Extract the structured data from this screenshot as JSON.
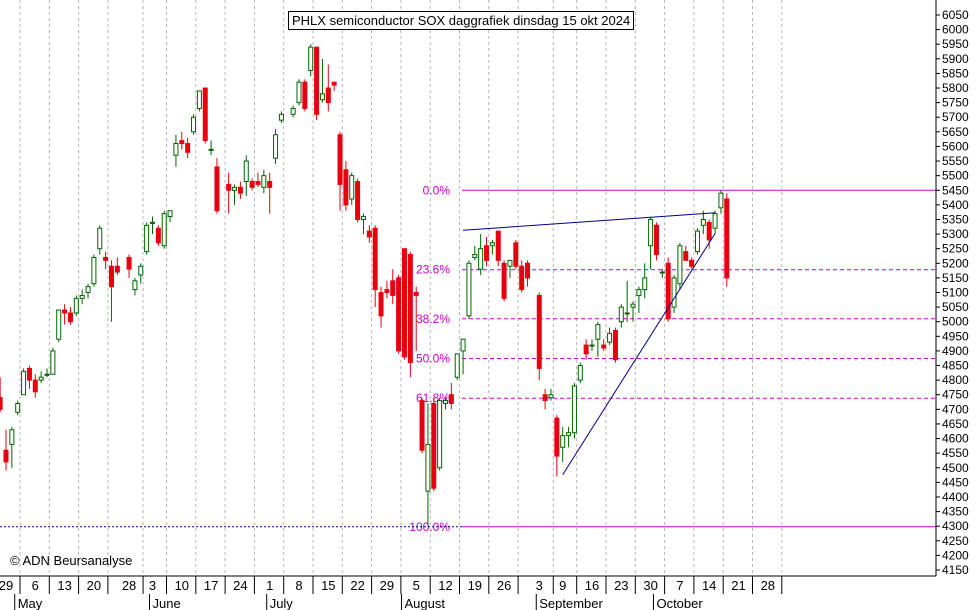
{
  "chart_data": {
    "type": "candlestick",
    "title": "PHLX semiconductor SOX daggrafiek dinsdag 15 okt 2024",
    "watermark": "© ADN Beursanalyse",
    "ylim": [
      4150,
      6090
    ],
    "y_ticks": [
      4150,
      4200,
      4250,
      4300,
      4350,
      4400,
      4450,
      4500,
      4550,
      4600,
      4650,
      4700,
      4750,
      4800,
      4850,
      4900,
      4950,
      5000,
      5050,
      5100,
      5150,
      5200,
      5250,
      5300,
      5350,
      5400,
      5450,
      5500,
      5550,
      5600,
      5650,
      5700,
      5750,
      5800,
      5850,
      5900,
      5950,
      6000,
      6050
    ],
    "x_ticks": [
      {
        "label": "29",
        "date": "2024-04-29"
      },
      {
        "label": "6",
        "date": "2024-05-06"
      },
      {
        "label": "13",
        "date": "2024-05-13"
      },
      {
        "label": "20",
        "date": "2024-05-20"
      },
      {
        "label": "28",
        "date": "2024-05-28"
      },
      {
        "label": "3",
        "date": "2024-06-03"
      },
      {
        "label": "10",
        "date": "2024-06-10"
      },
      {
        "label": "17",
        "date": "2024-06-17"
      },
      {
        "label": "24",
        "date": "2024-06-24"
      },
      {
        "label": "1",
        "date": "2024-07-01"
      },
      {
        "label": "8",
        "date": "2024-07-08"
      },
      {
        "label": "15",
        "date": "2024-07-15"
      },
      {
        "label": "22",
        "date": "2024-07-22"
      },
      {
        "label": "29",
        "date": "2024-07-29"
      },
      {
        "label": "5",
        "date": "2024-08-05"
      },
      {
        "label": "12",
        "date": "2024-08-12"
      },
      {
        "label": "19",
        "date": "2024-08-19"
      },
      {
        "label": "26",
        "date": "2024-08-26"
      },
      {
        "label": "3",
        "date": "2024-09-03"
      },
      {
        "label": "9",
        "date": "2024-09-09"
      },
      {
        "label": "16",
        "date": "2024-09-16"
      },
      {
        "label": "23",
        "date": "2024-09-23"
      },
      {
        "label": "30",
        "date": "2024-09-30"
      },
      {
        "label": "7",
        "date": "2024-10-07"
      },
      {
        "label": "14",
        "date": "2024-10-14"
      },
      {
        "label": "21",
        "date": "2024-10-21"
      },
      {
        "label": "28",
        "date": "2024-10-28"
      }
    ],
    "months": [
      {
        "label": "May",
        "date": "2024-05-01"
      },
      {
        "label": "June",
        "date": "2024-06-03"
      },
      {
        "label": "July",
        "date": "2024-07-01"
      },
      {
        "label": "August",
        "date": "2024-08-01"
      },
      {
        "label": "September",
        "date": "2024-09-03"
      },
      {
        "label": "October",
        "date": "2024-10-01"
      }
    ],
    "fib_levels": [
      {
        "label": "0.0%",
        "value": 5450
      },
      {
        "label": "23.6%",
        "value": 5178
      },
      {
        "label": "38.2%",
        "value": 5010
      },
      {
        "label": "50.0%",
        "value": 4874
      },
      {
        "label": "61.8%",
        "value": 4738
      },
      {
        "label": "100.0%",
        "value": 4298
      }
    ],
    "hlines": [
      {
        "value": 4298,
        "style": "dotted",
        "color": "#00008b"
      }
    ],
    "trendlines": [
      {
        "from": {
          "date": "2024-08-15",
          "value": 5313
        },
        "to": {
          "date": "2024-10-15",
          "value": 5373
        }
      },
      {
        "from": {
          "date": "2024-09-09",
          "value": 4476
        },
        "to": {
          "date": "2024-10-15",
          "value": 5302
        }
      }
    ],
    "candles": [
      {
        "date": "2024-04-26",
        "o": 4740,
        "h": 4810,
        "l": 4690,
        "c": 4700
      },
      {
        "date": "2024-04-29",
        "o": 4560,
        "h": 4630,
        "l": 4490,
        "c": 4520
      },
      {
        "date": "2024-04-30",
        "o": 4580,
        "h": 4640,
        "l": 4500,
        "c": 4630
      },
      {
        "date": "2024-05-01",
        "o": 4690,
        "h": 4730,
        "l": 4680,
        "c": 4720
      },
      {
        "date": "2024-05-02",
        "o": 4750,
        "h": 4840,
        "l": 4750,
        "c": 4830
      },
      {
        "date": "2024-05-03",
        "o": 4840,
        "h": 4850,
        "l": 4770,
        "c": 4800
      },
      {
        "date": "2024-05-06",
        "o": 4800,
        "h": 4820,
        "l": 4740,
        "c": 4760
      },
      {
        "date": "2024-05-07",
        "o": 4800,
        "h": 4830,
        "l": 4790,
        "c": 4810
      },
      {
        "date": "2024-05-08",
        "o": 4820,
        "h": 4840,
        "l": 4810,
        "c": 4820
      },
      {
        "date": "2024-05-09",
        "o": 4820,
        "h": 4910,
        "l": 4820,
        "c": 4900
      },
      {
        "date": "2024-05-10",
        "o": 4940,
        "h": 5040,
        "l": 4930,
        "c": 5040
      },
      {
        "date": "2024-05-13",
        "o": 5040,
        "h": 5060,
        "l": 4990,
        "c": 5030
      },
      {
        "date": "2024-05-14",
        "o": 5030,
        "h": 5050,
        "l": 4990,
        "c": 5000
      },
      {
        "date": "2024-05-15",
        "o": 5030,
        "h": 5090,
        "l": 5020,
        "c": 5080
      },
      {
        "date": "2024-05-16",
        "o": 5080,
        "h": 5110,
        "l": 5060,
        "c": 5090
      },
      {
        "date": "2024-05-17",
        "o": 5100,
        "h": 5130,
        "l": 5080,
        "c": 5120
      },
      {
        "date": "2024-05-20",
        "o": 5130,
        "h": 5230,
        "l": 5120,
        "c": 5220
      },
      {
        "date": "2024-05-21",
        "o": 5250,
        "h": 5330,
        "l": 5230,
        "c": 5320
      },
      {
        "date": "2024-05-22",
        "o": 5220,
        "h": 5240,
        "l": 5180,
        "c": 5210
      },
      {
        "date": "2024-05-23",
        "o": 5190,
        "h": 5210,
        "l": 5000,
        "c": 5120
      },
      {
        "date": "2024-05-24",
        "o": 5190,
        "h": 5220,
        "l": 5160,
        "c": 5170
      },
      {
        "date": "2024-05-28",
        "o": 5220,
        "h": 5230,
        "l": 5150,
        "c": 5180
      },
      {
        "date": "2024-05-29",
        "o": 5110,
        "h": 5150,
        "l": 5090,
        "c": 5140
      },
      {
        "date": "2024-05-30",
        "o": 5160,
        "h": 5200,
        "l": 5130,
        "c": 5190
      },
      {
        "date": "2024-05-31",
        "o": 5240,
        "h": 5340,
        "l": 5230,
        "c": 5330
      },
      {
        "date": "2024-06-03",
        "o": 5340,
        "h": 5360,
        "l": 5300,
        "c": 5340
      },
      {
        "date": "2024-06-04",
        "o": 5320,
        "h": 5330,
        "l": 5260,
        "c": 5270
      },
      {
        "date": "2024-06-05",
        "o": 5260,
        "h": 5380,
        "l": 5250,
        "c": 5370
      },
      {
        "date": "2024-06-06",
        "o": 5360,
        "h": 5380,
        "l": 5340,
        "c": 5380
      },
      {
        "date": "2024-06-07",
        "o": 5570,
        "h": 5640,
        "l": 5530,
        "c": 5610
      },
      {
        "date": "2024-06-10",
        "o": 5620,
        "h": 5650,
        "l": 5590,
        "c": 5610
      },
      {
        "date": "2024-06-11",
        "o": 5610,
        "h": 5630,
        "l": 5560,
        "c": 5580
      },
      {
        "date": "2024-06-12",
        "o": 5650,
        "h": 5710,
        "l": 5640,
        "c": 5700
      },
      {
        "date": "2024-06-13",
        "o": 5730,
        "h": 5790,
        "l": 5720,
        "c": 5790
      },
      {
        "date": "2024-06-14",
        "o": 5800,
        "h": 5800,
        "l": 5610,
        "c": 5620
      },
      {
        "date": "2024-06-17",
        "o": 5590,
        "h": 5620,
        "l": 5570,
        "c": 5590
      },
      {
        "date": "2024-06-18",
        "o": 5530,
        "h": 5560,
        "l": 5370,
        "c": 5380
      },
      {
        "date": "2024-06-20",
        "o": 5470,
        "h": 5510,
        "l": 5370,
        "c": 5450
      },
      {
        "date": "2024-06-21",
        "o": 5450,
        "h": 5470,
        "l": 5400,
        "c": 5460
      },
      {
        "date": "2024-06-24",
        "o": 5460,
        "h": 5480,
        "l": 5420,
        "c": 5440
      },
      {
        "date": "2024-06-25",
        "o": 5480,
        "h": 5570,
        "l": 5430,
        "c": 5550
      },
      {
        "date": "2024-06-26",
        "o": 5480,
        "h": 5490,
        "l": 5450,
        "c": 5460
      },
      {
        "date": "2024-06-27",
        "o": 5480,
        "h": 5510,
        "l": 5460,
        "c": 5470
      },
      {
        "date": "2024-06-28",
        "o": 5460,
        "h": 5520,
        "l": 5440,
        "c": 5500
      },
      {
        "date": "2024-07-01",
        "o": 5480,
        "h": 5510,
        "l": 5370,
        "c": 5460
      },
      {
        "date": "2024-07-02",
        "o": 5560,
        "h": 5660,
        "l": 5540,
        "c": 5640
      },
      {
        "date": "2024-07-03",
        "o": 5690,
        "h": 5720,
        "l": 5680,
        "c": 5710
      },
      {
        "date": "2024-07-05",
        "o": 5710,
        "h": 5740,
        "l": 5700,
        "c": 5730
      },
      {
        "date": "2024-07-08",
        "o": 5750,
        "h": 5830,
        "l": 5740,
        "c": 5820
      },
      {
        "date": "2024-07-09",
        "o": 5820,
        "h": 5830,
        "l": 5720,
        "c": 5730
      },
      {
        "date": "2024-07-10",
        "o": 5860,
        "h": 5950,
        "l": 5840,
        "c": 5940
      },
      {
        "date": "2024-07-11",
        "o": 5940,
        "h": 5940,
        "l": 5690,
        "c": 5710
      },
      {
        "date": "2024-07-12",
        "o": 5760,
        "h": 5900,
        "l": 5750,
        "c": 5780
      },
      {
        "date": "2024-07-15",
        "o": 5800,
        "h": 5880,
        "l": 5720,
        "c": 5750
      },
      {
        "date": "2024-07-16",
        "o": 5820,
        "h": 5820,
        "l": 5790,
        "c": 5810
      },
      {
        "date": "2024-07-17",
        "o": 5640,
        "h": 5650,
        "l": 5380,
        "c": 5470
      },
      {
        "date": "2024-07-18",
        "o": 5520,
        "h": 5550,
        "l": 5380,
        "c": 5400
      },
      {
        "date": "2024-07-19",
        "o": 5420,
        "h": 5510,
        "l": 5400,
        "c": 5500
      },
      {
        "date": "2024-07-22",
        "o": 5480,
        "h": 5490,
        "l": 5340,
        "c": 5350
      },
      {
        "date": "2024-07-23",
        "o": 5350,
        "h": 5370,
        "l": 5300,
        "c": 5360
      },
      {
        "date": "2024-07-24",
        "o": 5310,
        "h": 5330,
        "l": 5270,
        "c": 5290
      },
      {
        "date": "2024-07-25",
        "o": 5320,
        "h": 5330,
        "l": 5050,
        "c": 5110
      },
      {
        "date": "2024-07-26",
        "o": 5100,
        "h": 5120,
        "l": 4980,
        "c": 5020
      },
      {
        "date": "2024-07-29",
        "o": 5110,
        "h": 5140,
        "l": 5080,
        "c": 5100
      },
      {
        "date": "2024-07-30",
        "o": 5140,
        "h": 5180,
        "l": 5060,
        "c": 5090
      },
      {
        "date": "2024-07-31",
        "o": 5150,
        "h": 5160,
        "l": 4890,
        "c": 4900
      },
      {
        "date": "2024-08-01",
        "o": 5250,
        "h": 5250,
        "l": 4870,
        "c": 4880
      },
      {
        "date": "2024-08-02",
        "o": 5230,
        "h": 5240,
        "l": 4810,
        "c": 4860
      },
      {
        "date": "2024-08-05",
        "o": 5100,
        "h": 5120,
        "l": 4900,
        "c": 5090
      },
      {
        "date": "2024-08-06",
        "o": 4730,
        "h": 4740,
        "l": 4550,
        "c": 4560
      },
      {
        "date": "2024-08-07",
        "o": 4420,
        "h": 4720,
        "l": 4300,
        "c": 4580
      },
      {
        "date": "2024-08-08",
        "o": 4720,
        "h": 4740,
        "l": 4420,
        "c": 4430
      },
      {
        "date": "2024-08-09",
        "o": 4500,
        "h": 4740,
        "l": 4490,
        "c": 4730
      },
      {
        "date": "2024-08-12",
        "o": 4720,
        "h": 4740,
        "l": 4700,
        "c": 4730
      },
      {
        "date": "2024-08-13",
        "o": 4750,
        "h": 4790,
        "l": 4700,
        "c": 4720
      },
      {
        "date": "2024-08-14",
        "o": 4810,
        "h": 4890,
        "l": 4800,
        "c": 4890
      },
      {
        "date": "2024-08-15",
        "o": 4900,
        "h": 4940,
        "l": 4820,
        "c": 4940
      },
      {
        "date": "2024-08-16",
        "o": 5020,
        "h": 5210,
        "l": 5010,
        "c": 5200
      },
      {
        "date": "2024-08-19",
        "o": 5220,
        "h": 5260,
        "l": 5210,
        "c": 5230
      },
      {
        "date": "2024-08-20",
        "o": 5180,
        "h": 5300,
        "l": 5160,
        "c": 5250
      },
      {
        "date": "2024-08-21",
        "o": 5260,
        "h": 5290,
        "l": 5190,
        "c": 5210
      },
      {
        "date": "2024-08-22",
        "o": 5260,
        "h": 5280,
        "l": 5230,
        "c": 5270
      },
      {
        "date": "2024-08-23",
        "o": 5310,
        "h": 5310,
        "l": 5190,
        "c": 5210
      },
      {
        "date": "2024-08-26",
        "o": 5200,
        "h": 5210,
        "l": 5070,
        "c": 5080
      },
      {
        "date": "2024-08-27",
        "o": 5190,
        "h": 5210,
        "l": 5150,
        "c": 5210
      },
      {
        "date": "2024-08-28",
        "o": 5270,
        "h": 5280,
        "l": 5180,
        "c": 5190
      },
      {
        "date": "2024-08-29",
        "o": 5190,
        "h": 5210,
        "l": 5100,
        "c": 5110
      },
      {
        "date": "2024-08-30",
        "o": 5200,
        "h": 5210,
        "l": 5120,
        "c": 5150
      },
      {
        "date": "2024-09-03",
        "o": 5090,
        "h": 5100,
        "l": 4800,
        "c": 4840
      },
      {
        "date": "2024-09-04",
        "o": 4750,
        "h": 4770,
        "l": 4700,
        "c": 4730
      },
      {
        "date": "2024-09-05",
        "o": 4740,
        "h": 4770,
        "l": 4730,
        "c": 4750
      },
      {
        "date": "2024-09-06",
        "o": 4670,
        "h": 4680,
        "l": 4470,
        "c": 4540
      },
      {
        "date": "2024-09-09",
        "o": 4570,
        "h": 4640,
        "l": 4520,
        "c": 4610
      },
      {
        "date": "2024-09-10",
        "o": 4610,
        "h": 4640,
        "l": 4570,
        "c": 4620
      },
      {
        "date": "2024-09-11",
        "o": 4620,
        "h": 4790,
        "l": 4600,
        "c": 4780
      },
      {
        "date": "2024-09-12",
        "o": 4800,
        "h": 4860,
        "l": 4790,
        "c": 4850
      },
      {
        "date": "2024-09-13",
        "o": 4920,
        "h": 4940,
        "l": 4870,
        "c": 4890
      },
      {
        "date": "2024-09-16",
        "o": 4920,
        "h": 4940,
        "l": 4900,
        "c": 4920
      },
      {
        "date": "2024-09-17",
        "o": 4940,
        "h": 5000,
        "l": 4880,
        "c": 4990
      },
      {
        "date": "2024-09-18",
        "o": 4920,
        "h": 4940,
        "l": 4900,
        "c": 4910
      },
      {
        "date": "2024-09-19",
        "o": 4930,
        "h": 4980,
        "l": 4920,
        "c": 4960
      },
      {
        "date": "2024-09-20",
        "o": 4970,
        "h": 4980,
        "l": 4860,
        "c": 4870
      },
      {
        "date": "2024-09-23",
        "o": 5000,
        "h": 5060,
        "l": 4980,
        "c": 5050
      },
      {
        "date": "2024-09-24",
        "o": 5030,
        "h": 5140,
        "l": 5000,
        "c": 5030
      },
      {
        "date": "2024-09-25",
        "o": 5050,
        "h": 5070,
        "l": 5000,
        "c": 5060
      },
      {
        "date": "2024-09-26",
        "o": 5090,
        "h": 5120,
        "l": 5030,
        "c": 5110
      },
      {
        "date": "2024-09-27",
        "o": 5110,
        "h": 5200,
        "l": 5080,
        "c": 5150
      },
      {
        "date": "2024-09-30",
        "o": 5260,
        "h": 5360,
        "l": 5180,
        "c": 5350
      },
      {
        "date": "2024-10-01",
        "o": 5330,
        "h": 5340,
        "l": 5210,
        "c": 5230
      },
      {
        "date": "2024-10-02",
        "o": 5170,
        "h": 5180,
        "l": 5150,
        "c": 5170
      },
      {
        "date": "2024-10-03",
        "o": 5200,
        "h": 5220,
        "l": 5000,
        "c": 5010
      },
      {
        "date": "2024-10-04",
        "o": 5050,
        "h": 5160,
        "l": 5030,
        "c": 5150
      },
      {
        "date": "2024-10-07",
        "o": 5130,
        "h": 5270,
        "l": 5110,
        "c": 5260
      },
      {
        "date": "2024-10-08",
        "o": 5240,
        "h": 5260,
        "l": 5210,
        "c": 5210
      },
      {
        "date": "2024-10-09",
        "o": 5210,
        "h": 5220,
        "l": 5180,
        "c": 5190
      },
      {
        "date": "2024-10-10",
        "o": 5240,
        "h": 5320,
        "l": 5230,
        "c": 5310
      },
      {
        "date": "2024-10-11",
        "o": 5330,
        "h": 5380,
        "l": 5300,
        "c": 5350
      },
      {
        "date": "2024-10-14",
        "o": 5340,
        "h": 5350,
        "l": 5250,
        "c": 5280
      },
      {
        "date": "2024-10-15",
        "o": 5320,
        "h": 5380,
        "l": 5300,
        "c": 5370
      },
      {
        "date": "2024-10-16",
        "o": 5390,
        "h": 5450,
        "l": 5370,
        "c": 5440
      },
      {
        "date": "2024-10-17",
        "o": 5420,
        "h": 5440,
        "l": 5120,
        "c": 5150
      }
    ],
    "colors": {
      "up": "#ffffff",
      "up_stroke": "#006400",
      "down": "#e8000f",
      "down_stroke": "#e8000f",
      "fib": "#cc00cc",
      "trend": "#00008b",
      "grid": "#b4b4b4"
    }
  }
}
